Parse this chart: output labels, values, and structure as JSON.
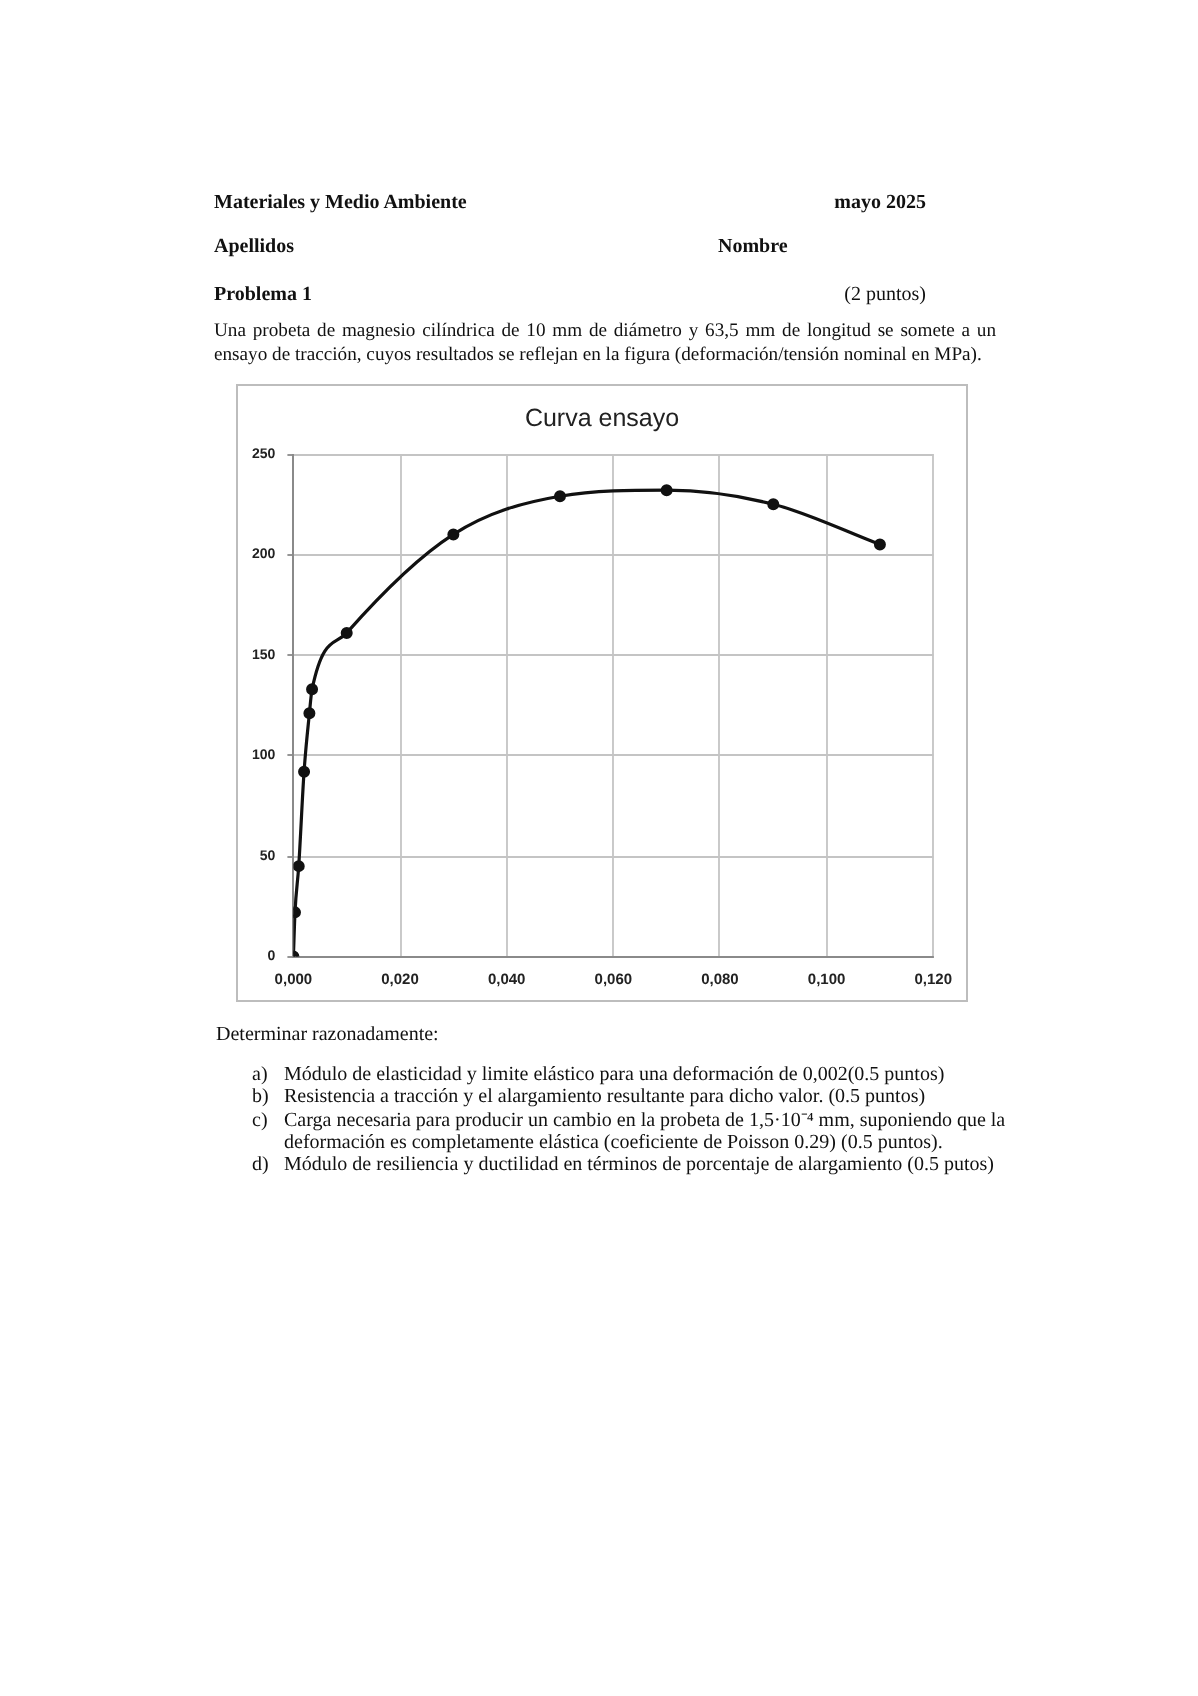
{
  "chart_data": {
    "type": "line",
    "title": "Curva ensayo",
    "x": [
      0,
      0.0003,
      0.001,
      0.002,
      0.003,
      0.0035,
      0.01,
      0.03,
      0.05,
      0.07,
      0.09,
      0.11
    ],
    "values": [
      0,
      22,
      45,
      92,
      121,
      133,
      161,
      210,
      229,
      232,
      225,
      205
    ],
    "color": "#111111",
    "marker": "circle",
    "line_style": "solid",
    "grid": true,
    "xlim": [
      0,
      0.12
    ],
    "xticks": [
      {
        "value": 0,
        "label": "0,000"
      },
      {
        "value": 0.02,
        "label": "0,020"
      },
      {
        "value": 0.04,
        "label": "0,040"
      },
      {
        "value": 0.06,
        "label": "0,060"
      },
      {
        "value": 0.08,
        "label": "0,080"
      },
      {
        "value": 0.1,
        "label": "0,100"
      },
      {
        "value": 0.12,
        "label": "0,120"
      }
    ],
    "ylim": [
      0,
      250
    ],
    "yticks": [
      0,
      50,
      100,
      150,
      200,
      250
    ],
    "annotations": [
      "Materiales y Medio Ambiente",
      "mayo 2025",
      "Apellidos",
      "Nombre",
      "Problema 1",
      "(2 puntos)",
      "Una probeta de magnesio cilíndrica de 10 mm de diámetro y 63,5 mm de longitud se somete a un ensayo de tracción, cuyos resultados se reflejan en la figura (deformación/tensión nominal en MPa).",
      "Determinar razonadamente:",
      "a) Módulo de elasticidad y limite elástico para una deformación de 0,002(0.5 puntos)",
      "b) Resistencia a tracción y el alargamiento resultante para dicho valor. (0.5 puntos)",
      "c) Carga necesaria para producir un cambio en la probeta de 1,5·10⁻⁴ mm, suponiendo que la deformación es completamente elástica (coeficiente de Poisson 0.29) (0.5 puntos).",
      "d) Módulo de resiliencia y ductilidad en términos de porcentaje de alargamiento (0.5 putos)"
    ]
  }
}
